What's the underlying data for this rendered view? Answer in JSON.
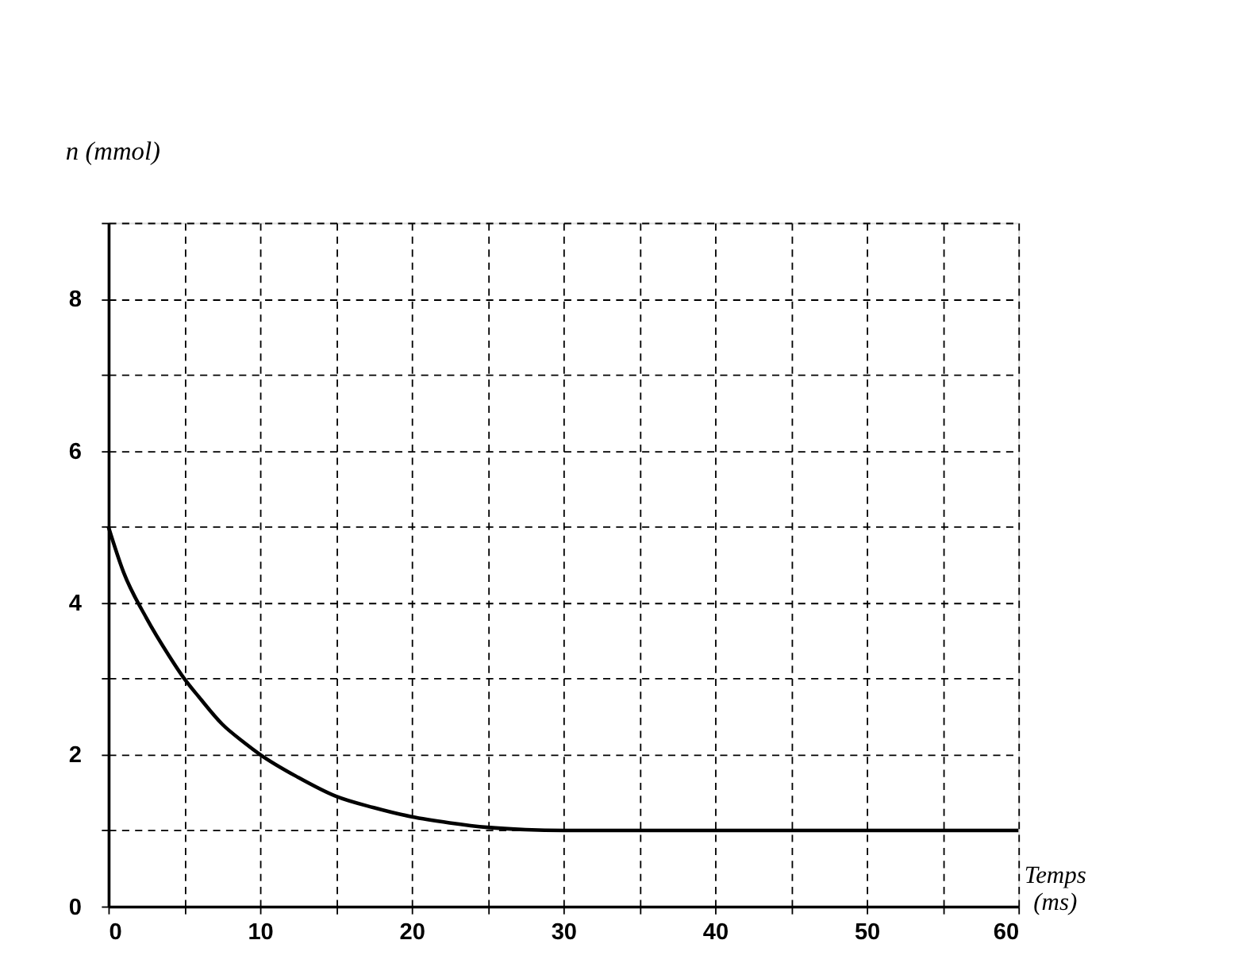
{
  "chart_data": {
    "type": "line",
    "xlabel": "Temps (ms)",
    "ylabel": "n (mmol)",
    "x": [
      0,
      1,
      2.5,
      4,
      5,
      6,
      7.5,
      9,
      10,
      12.5,
      15,
      17.5,
      20,
      22.5,
      25,
      27.5,
      30,
      35,
      40,
      45,
      50,
      55,
      60
    ],
    "series": [
      {
        "color": "#000000",
        "values": [
          5,
          4.4,
          3.8,
          3.3,
          3.0,
          2.75,
          2.4,
          2.15,
          2.0,
          1.7,
          1.45,
          1.3,
          1.18,
          1.1,
          1.04,
          1.01,
          1.0,
          1.0,
          1.0,
          1.0,
          1.0,
          1.0,
          1.0
        ]
      }
    ],
    "xlim": [
      0,
      60
    ],
    "ylim": [
      0,
      9
    ],
    "xticks": [
      0,
      {
        "value": 5,
        "label": null
      },
      10,
      {
        "value": 15,
        "label": null
      },
      20,
      {
        "value": 25,
        "label": null
      },
      30,
      {
        "value": 35,
        "label": null
      },
      40,
      {
        "value": 45,
        "label": null
      },
      50,
      {
        "value": 55,
        "label": null
      },
      60
    ],
    "yticks": [
      0,
      {
        "value": 1,
        "label": null
      },
      2,
      {
        "value": 3,
        "label": null
      },
      4,
      {
        "value": 5,
        "label": null
      },
      6,
      {
        "value": 7,
        "label": null
      },
      8,
      {
        "value": 9,
        "label": null
      }
    ],
    "grid": true,
    "line_style": "solid",
    "marker": "none"
  }
}
